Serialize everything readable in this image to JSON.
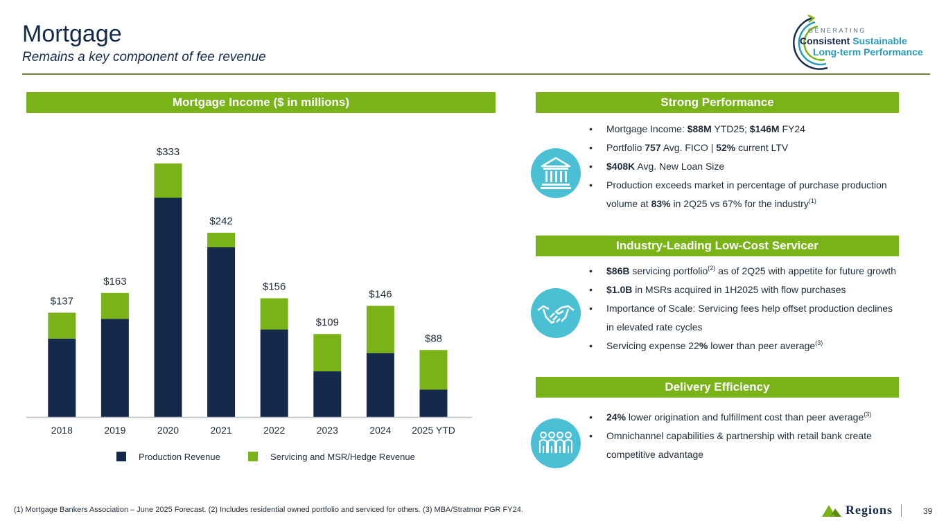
{
  "header": {
    "title": "Mortgage",
    "subtitle": "Remains a key component of fee revenue"
  },
  "logo": {
    "line0": "GENERATING",
    "line1a": "Consistent",
    "line1b": "Sustainable",
    "line2": "Long-term Performance"
  },
  "chart_section": {
    "title": "Mortgage Income ($ in millions)"
  },
  "chart_data": {
    "type": "bar",
    "stacked": true,
    "title": "Mortgage Income ($ in millions)",
    "categories": [
      "2018",
      "2019",
      "2020",
      "2021",
      "2022",
      "2023",
      "2024",
      "2025 YTD"
    ],
    "series": [
      {
        "name": "Production Revenue",
        "color": "#15294b",
        "values": [
          103,
          129,
          288,
          223,
          115,
          60,
          84,
          36
        ]
      },
      {
        "name": "Servicing and MSR/Hedge Revenue",
        "color": "#7ab317",
        "values": [
          34,
          34,
          45,
          19,
          41,
          49,
          62,
          52
        ]
      }
    ],
    "totals": [
      137,
      163,
      333,
      242,
      156,
      109,
      146,
      88
    ],
    "total_labels": [
      "$137",
      "$163",
      "$333",
      "$242",
      "$156",
      "$109",
      "$146",
      "$88"
    ],
    "ylim": [
      0,
      333
    ],
    "legend": "bottom",
    "xlabel": "",
    "ylabel": ""
  },
  "performance": {
    "title": "Strong Performance",
    "icon": "bank-icon",
    "b1": {
      "pre": "Mortgage Income: ",
      "v1": "$88M",
      "mid": " YTD25; ",
      "v2": "$146M",
      "post": " FY24"
    },
    "b2": {
      "pre": "Portfolio ",
      "v1": "757",
      "mid": " Avg. FICO |  ",
      "v2": "52%",
      "post": " current LTV"
    },
    "b3": {
      "v1": "$408K",
      "post": " Avg. New Loan Size"
    },
    "b4": {
      "pre": "Production exceeds market in percentage of purchase production volume at ",
      "v1": "83%",
      "post": " in 2Q25 vs 67% for the industry",
      "sup": "(1)"
    }
  },
  "servicer": {
    "title": "Industry-Leading Low-Cost Servicer",
    "icon": "handshake-icon",
    "b1": {
      "v1": "$86B",
      "mid": " servicing portfolio",
      "sup": "(2)",
      "post": " as of 2Q25 with appetite for future growth"
    },
    "b2": {
      "v1": "$1.0B",
      "post": " in MSRs acquired in 1H2025 with flow purchases"
    },
    "b3": {
      "text": "Importance of Scale: Servicing fees help offset production declines in elevated rate cycles"
    },
    "b4": {
      "pre": "Servicing expense 22",
      "v1": "%",
      "post": " lower than peer average",
      "sup": "(3)"
    }
  },
  "delivery": {
    "title": "Delivery Efficiency",
    "icon": "people-icon",
    "b1": {
      "v1": "24%",
      "post": " lower origination and fulfillment cost than peer average",
      "sup": "(3)"
    },
    "b2": {
      "text": "Omnichannel capabilities & partnership with retail bank create competitive advantage"
    }
  },
  "footer": {
    "footnote": "(1) Mortgage Bankers Association – June 2025 Forecast. (2) Includes residential owned portfolio and serviced for others. (3) MBA/Stratmor PGR FY24.",
    "brand": "Regions",
    "page": "39"
  }
}
